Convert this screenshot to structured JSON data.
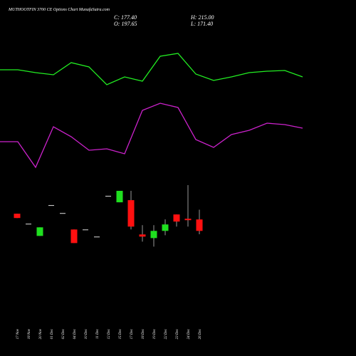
{
  "chart_data": [
    {
      "type": "candlestick",
      "title": "MUTHOOTFIN 3700 CE Options Chart MunafaSutra.com",
      "close_label": "C: 177.40",
      "open_label": "O: 197.65",
      "high_label": "H: 215.00",
      "low_label": "L: 171.40",
      "categories": [
        "17 Nov",
        "18 Nov",
        "20 Nov",
        "01 Dec",
        "02 Dec",
        "04 Dec",
        "10 Dec",
        "11 Dec",
        "12 Dec",
        "15 Dec",
        "17 Dec",
        "18 Dec",
        "19 Dec",
        "22 Dec",
        "23 Dec",
        "24 Dec",
        "26 Dec"
      ],
      "open": [
        207.8,
        190.1,
        168.5,
        223.0,
        209.0,
        179.9,
        179.9,
        167.3,
        239.4,
        228.0,
        231.8,
        171.1,
        164.7,
        177.4,
        206.5,
        198.9,
        197.65
      ],
      "close": [
        200.2,
        190.1,
        183.7,
        223.0,
        209.0,
        155.9,
        179.9,
        167.3,
        239.4,
        248.3,
        185.0,
        167.3,
        177.4,
        188.8,
        193.9,
        196.4,
        177.4
      ],
      "high": [
        207.8,
        190.1,
        183.7,
        223.0,
        209.0,
        179.9,
        179.9,
        167.3,
        239.4,
        248.3,
        248.3,
        187.5,
        187.5,
        197.7,
        206.5,
        258.4,
        215.0
      ],
      "low": [
        200.2,
        190.1,
        168.5,
        223.0,
        209.0,
        155.9,
        179.9,
        167.3,
        239.4,
        228.0,
        179.9,
        158.4,
        149.5,
        169.8,
        185.0,
        185.0,
        171.4
      ],
      "up_color": "#1fe01f",
      "down_color": "#ff1010",
      "ylim": [
        145,
        271
      ]
    },
    {
      "type": "line",
      "series": [
        {
          "color": "#22ee22",
          "values": [
            152,
            152,
            148,
            145,
            162,
            156,
            131,
            142,
            136,
            171,
            175,
            146,
            137,
            142,
            148,
            150,
            151,
            142
          ]
        },
        {
          "color": "#cc22cc",
          "values": [
            51,
            51,
            15,
            72,
            58,
            39,
            41,
            34,
            95,
            105,
            99,
            54,
            43,
            61,
            67,
            77,
            75,
            70
          ]
        }
      ],
      "ylim": [
        0,
        250
      ]
    }
  ]
}
